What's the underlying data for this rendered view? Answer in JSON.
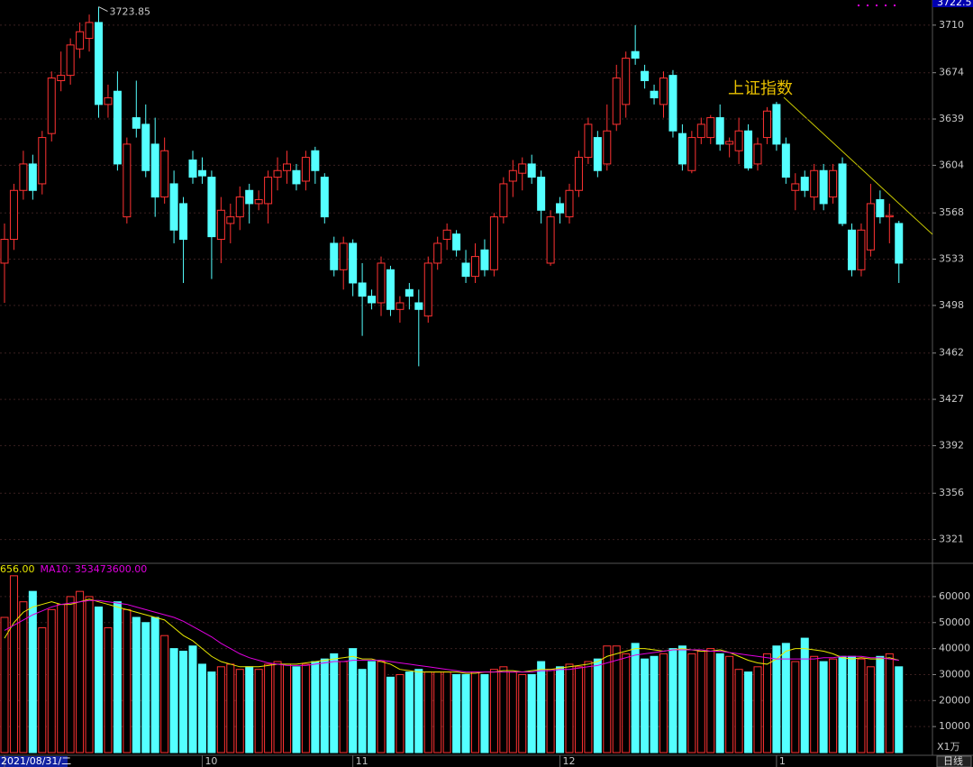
{
  "chart_data": [
    {
      "type": "candlestick",
      "name": "上证指数",
      "categories": [
        "2021/08/31/二",
        null,
        null,
        null,
        null,
        null,
        null,
        null,
        null,
        null,
        null,
        null,
        null,
        null,
        null,
        null,
        null,
        null,
        null,
        null,
        null,
        "10",
        null,
        null,
        null,
        null,
        null,
        null,
        null,
        null,
        null,
        null,
        null,
        null,
        null,
        null,
        null,
        "11",
        null,
        null,
        null,
        null,
        null,
        null,
        null,
        null,
        null,
        null,
        null,
        null,
        null,
        null,
        null,
        null,
        null,
        null,
        null,
        null,
        null,
        "12",
        null,
        null,
        null,
        null,
        null,
        null,
        null,
        null,
        null,
        null,
        null,
        null,
        null,
        null,
        null,
        null,
        null,
        null,
        null,
        null,
        null,
        null,
        "1",
        null,
        null,
        null,
        null,
        null,
        null,
        null,
        null,
        null,
        null,
        null,
        null,
        null
      ],
      "open": [
        3530,
        3548,
        3585,
        3605,
        3590,
        3628,
        3668,
        3672,
        3692,
        3700,
        3712,
        3650,
        3660,
        3565,
        3640,
        3635,
        3620,
        3580,
        3590,
        3575,
        3608,
        3600,
        3595,
        3548,
        3560,
        3565,
        3585,
        3575,
        3575,
        3595,
        3600,
        3600,
        3592,
        3615,
        3595,
        3545,
        3525,
        3545,
        3515,
        3505,
        3500,
        3525,
        3495,
        3510,
        3500,
        3490,
        3530,
        3548,
        3552,
        3530,
        3520,
        3540,
        3525,
        3565,
        3592,
        3598,
        3605,
        3595,
        3530,
        3575,
        3565,
        3585,
        3610,
        3625,
        3605,
        3635,
        3650,
        3690,
        3675,
        3660,
        3650,
        3672,
        3628,
        3600,
        3625,
        3625,
        3640,
        3620,
        3615,
        3630,
        3605,
        3625,
        3650,
        3620,
        3585,
        3595,
        3580,
        3600,
        3580,
        3605,
        3555,
        3525,
        3540,
        3578,
        3565,
        3560
      ],
      "high": [
        3560,
        3590,
        3615,
        3612,
        3630,
        3675,
        3690,
        3700,
        3712,
        3718,
        3723.85,
        3665,
        3675,
        3625,
        3668,
        3650,
        3640,
        3625,
        3600,
        3580,
        3615,
        3610,
        3600,
        3580,
        3575,
        3588,
        3590,
        3585,
        3600,
        3610,
        3615,
        3605,
        3615,
        3618,
        3598,
        3550,
        3550,
        3548,
        3530,
        3510,
        3535,
        3528,
        3505,
        3515,
        3510,
        3535,
        3550,
        3560,
        3555,
        3540,
        3545,
        3548,
        3568,
        3595,
        3608,
        3610,
        3612,
        3600,
        3570,
        3580,
        3590,
        3615,
        3640,
        3630,
        3650,
        3680,
        3690,
        3710,
        3680,
        3665,
        3675,
        3676,
        3635,
        3630,
        3640,
        3642,
        3650,
        3625,
        3640,
        3635,
        3625,
        3648,
        3652,
        3625,
        3598,
        3600,
        3605,
        3605,
        3605,
        3610,
        3560,
        3560,
        3590,
        3585,
        3575,
        3562
      ],
      "low": [
        3500,
        3540,
        3578,
        3578,
        3582,
        3622,
        3660,
        3665,
        3685,
        3690,
        3640,
        3640,
        3600,
        3560,
        3625,
        3595,
        3565,
        3575,
        3545,
        3515,
        3590,
        3590,
        3518,
        3530,
        3545,
        3555,
        3560,
        3570,
        3560,
        3585,
        3590,
        3585,
        3585,
        3590,
        3560,
        3520,
        3510,
        3505,
        3475,
        3495,
        3490,
        3490,
        3485,
        3495,
        3452,
        3485,
        3525,
        3540,
        3535,
        3515,
        3515,
        3520,
        3520,
        3560,
        3580,
        3585,
        3590,
        3560,
        3528,
        3560,
        3560,
        3580,
        3605,
        3595,
        3600,
        3630,
        3640,
        3680,
        3662,
        3650,
        3640,
        3625,
        3600,
        3598,
        3620,
        3620,
        3615,
        3610,
        3605,
        3600,
        3600,
        3620,
        3615,
        3590,
        3570,
        3580,
        3570,
        3570,
        3575,
        3558,
        3520,
        3520,
        3535,
        3560,
        3545,
        3515
      ],
      "close": [
        3548,
        3585,
        3605,
        3585,
        3625,
        3670,
        3672,
        3695,
        3705,
        3712,
        3650,
        3655,
        3605,
        3620,
        3632,
        3600,
        3580,
        3615,
        3555,
        3548,
        3595,
        3596,
        3550,
        3570,
        3565,
        3580,
        3575,
        3578,
        3595,
        3600,
        3605,
        3590,
        3610,
        3600,
        3565,
        3525,
        3545,
        3515,
        3505,
        3500,
        3530,
        3495,
        3500,
        3505,
        3495,
        3530,
        3545,
        3555,
        3540,
        3520,
        3535,
        3525,
        3565,
        3590,
        3600,
        3605,
        3595,
        3570,
        3565,
        3568,
        3585,
        3610,
        3635,
        3600,
        3630,
        3670,
        3685,
        3685,
        3668,
        3655,
        3670,
        3630,
        3605,
        3625,
        3635,
        3640,
        3620,
        3622,
        3630,
        3602,
        3620,
        3645,
        3620,
        3595,
        3590,
        3585,
        3600,
        3575,
        3600,
        3560,
        3525,
        3555,
        3575,
        3565,
        3566,
        3530
      ],
      "ylim": [
        3303,
        3729
      ],
      "yticks": [
        3710,
        3674,
        3639,
        3604,
        3568,
        3533,
        3498,
        3462,
        3427,
        3392,
        3356,
        3321
      ],
      "last_price": 3722.5,
      "up_color": "#ff3232",
      "down_color": "#54ffff",
      "grid": true
    },
    {
      "type": "volume",
      "unit": "X1万",
      "values": [
        52000,
        68000,
        58000,
        62000,
        48000,
        55000,
        57000,
        60000,
        62000,
        60000,
        56000,
        48000,
        58000,
        55000,
        52000,
        50000,
        52000,
        45000,
        40000,
        39000,
        41000,
        34000,
        31000,
        33000,
        34000,
        32000,
        33000,
        32000,
        34000,
        35000,
        34000,
        33000,
        34000,
        35000,
        36000,
        38000,
        35000,
        40000,
        32000,
        35000,
        35000,
        29000,
        30000,
        31000,
        32000,
        31000,
        31000,
        31000,
        30000,
        30000,
        31000,
        30000,
        32000,
        33000,
        31000,
        30000,
        30000,
        35000,
        32000,
        33000,
        34000,
        33000,
        35000,
        36000,
        41000,
        41000,
        38000,
        42000,
        36000,
        37000,
        38000,
        40000,
        41000,
        38000,
        39000,
        40000,
        38000,
        37000,
        32000,
        31000,
        33000,
        38000,
        41000,
        42000,
        35000,
        44000,
        37000,
        35000,
        36000,
        37000,
        37000,
        36000,
        33000,
        37000,
        38000,
        33000
      ],
      "ylim": [
        0,
        72800
      ],
      "yticks": [
        60000,
        50000,
        40000,
        30000,
        20000,
        10000
      ],
      "series": [
        {
          "name": "656.00",
          "color": "#e8e800",
          "values": [
            44000,
            50000,
            54000,
            56000,
            57000,
            58000,
            57000,
            57000,
            58000,
            59000,
            58000,
            57000,
            56000,
            55000,
            54000,
            53000,
            52000,
            51000,
            48000,
            45000,
            43000,
            40000,
            37000,
            35000,
            34000,
            33000,
            33000,
            33000,
            33500,
            34000,
            34000,
            34000,
            34500,
            35000,
            35500,
            36000,
            36500,
            37000,
            36000,
            36000,
            35000,
            34000,
            32000,
            31500,
            31000,
            31000,
            31000,
            31000,
            31000,
            30500,
            30500,
            31000,
            31000,
            31500,
            31500,
            31000,
            31500,
            32000,
            32000,
            32500,
            33000,
            33500,
            34000,
            35000,
            37000,
            38000,
            39000,
            40000,
            40000,
            39500,
            39000,
            39500,
            40000,
            39500,
            39000,
            39000,
            39500,
            38500,
            37000,
            35500,
            34500,
            34000,
            36000,
            39000,
            40000,
            40000,
            39500,
            39000,
            38000,
            36500,
            36000,
            36500,
            36000,
            36000,
            36500,
            35500
          ]
        },
        {
          "name": "MA10: 353473600.00",
          "color": "#e000e0",
          "values": [
            47000,
            49000,
            51000,
            53000,
            54500,
            56000,
            57000,
            57500,
            58000,
            58500,
            58500,
            58000,
            57500,
            57000,
            56000,
            55000,
            54000,
            53000,
            52000,
            50500,
            48500,
            46500,
            44500,
            42000,
            40000,
            38000,
            36500,
            35500,
            34500,
            34000,
            33500,
            33500,
            33500,
            34000,
            34500,
            35000,
            35000,
            35500,
            35500,
            35500,
            35500,
            35000,
            34500,
            34000,
            33500,
            33000,
            32500,
            32000,
            31500,
            31000,
            31000,
            31000,
            31000,
            31000,
            31000,
            31000,
            31000,
            31500,
            31500,
            32000,
            32000,
            32500,
            33000,
            33500,
            34500,
            35500,
            36500,
            37500,
            38000,
            38500,
            39000,
            39500,
            39500,
            39500,
            39500,
            39000,
            39000,
            38500,
            38000,
            37500,
            37000,
            36500,
            36000,
            36000,
            36000,
            36000,
            36000,
            36500,
            36500,
            37000,
            37000,
            37000,
            36500,
            36500,
            36000,
            35500
          ]
        }
      ]
    }
  ],
  "toolbar": {
    "period": "日线"
  }
}
